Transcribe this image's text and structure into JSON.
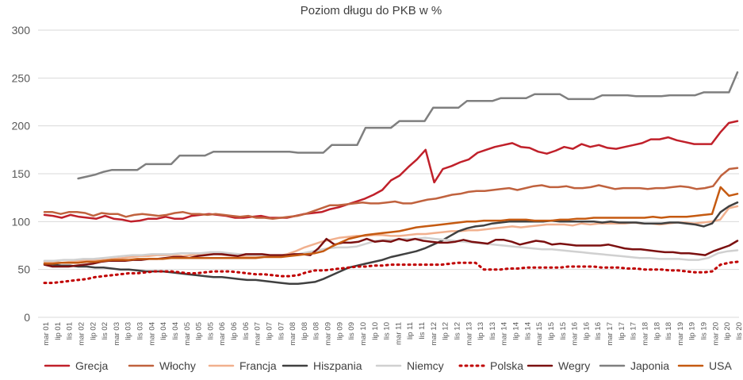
{
  "chart_data": {
    "type": "line",
    "title": "Poziom długu do PKB w %",
    "xlabel": "",
    "ylabel": "",
    "ylim": [
      0,
      300
    ],
    "yticks": [
      0,
      50,
      100,
      150,
      200,
      250,
      300
    ],
    "grid": true,
    "legend_position": "bottom",
    "x_tick_labels": [
      "mar 01",
      "lip 01",
      "lis 01",
      "mar 02",
      "lip 02",
      "lis 02",
      "mar 03",
      "lip 03",
      "lis 03",
      "mar 04",
      "lip 04",
      "lis 04",
      "mar 05",
      "lip 05",
      "lis 05",
      "mar 06",
      "lip 06",
      "lis 06",
      "mar 07",
      "lip 07",
      "lis 07",
      "mar 08",
      "lip 08",
      "lis 08",
      "mar 09",
      "lip 09",
      "lis 09",
      "mar 10",
      "lip 10",
      "lis 10",
      "mar 11",
      "lip 11",
      "lis 11",
      "mar 12",
      "lip 12",
      "lis 12",
      "mar 13",
      "lip 13",
      "lis 13",
      "mar 14",
      "lip 14",
      "lis 14",
      "mar 15",
      "lip 15",
      "lis 15",
      "mar 16",
      "lip 16",
      "lis 16",
      "mar 17",
      "lip 17",
      "lis 17",
      "mar 18",
      "lip 18",
      "lis 18",
      "mar 19",
      "lip 19",
      "lis 19",
      "mar 20",
      "lip 20",
      "lis 20"
    ],
    "series": [
      {
        "name": "Grecja",
        "color": "#c0202a",
        "width": 2.5,
        "dash": "",
        "start": 0,
        "values": [
          107,
          106,
          104,
          107,
          105,
          104,
          103,
          106,
          103,
          102,
          100,
          101,
          103,
          103,
          105,
          103,
          103,
          106,
          107,
          108,
          107,
          106,
          104,
          104,
          105,
          106,
          104,
          104,
          104,
          106,
          108,
          109,
          110,
          113,
          115,
          118,
          121,
          124,
          128,
          133,
          143,
          148,
          157,
          165,
          175,
          141,
          155,
          158,
          162,
          165,
          172,
          175,
          178,
          180,
          182,
          178,
          177,
          173,
          171,
          174,
          178,
          176,
          181,
          178,
          180,
          177,
          176,
          178,
          180,
          182,
          186,
          186,
          188,
          185,
          183,
          181,
          181,
          181,
          193,
          203,
          205
        ]
      },
      {
        "name": "Włochy",
        "color": "#c0623e",
        "width": 2.5,
        "dash": "",
        "start": 0,
        "values": [
          110,
          110,
          108,
          110,
          110,
          109,
          106,
          109,
          108,
          108,
          105,
          107,
          108,
          107,
          106,
          107,
          109,
          110,
          108,
          108,
          107,
          108,
          107,
          106,
          105,
          106,
          104,
          104,
          103,
          104,
          105,
          106,
          108,
          111,
          114,
          117,
          117,
          118,
          119,
          120,
          119,
          119,
          120,
          121,
          119,
          119,
          121,
          123,
          124,
          126,
          128,
          129,
          131,
          132,
          132,
          133,
          134,
          135,
          133,
          135,
          137,
          138,
          136,
          136,
          137,
          135,
          135,
          136,
          138,
          136,
          134,
          135,
          135,
          135,
          134,
          135,
          135,
          136,
          137,
          136,
          134,
          135,
          137,
          148,
          155,
          156
        ]
      },
      {
        "name": "Francja",
        "color": "#f1b08e",
        "width": 2.5,
        "dash": "",
        "start": 0,
        "values": [
          58,
          58,
          57,
          58,
          59,
          59,
          60,
          60,
          61,
          62,
          63,
          64,
          64,
          65,
          65,
          65,
          64,
          65,
          66,
          66,
          66,
          65,
          64,
          64,
          63,
          64,
          64,
          64,
          66,
          69,
          73,
          76,
          79,
          81,
          83,
          84,
          85,
          85,
          86,
          86,
          85,
          85,
          86,
          87,
          87,
          88,
          89,
          90,
          90,
          91,
          91,
          92,
          93,
          94,
          95,
          94,
          95,
          96,
          97,
          97,
          97,
          96,
          98,
          97,
          98,
          98,
          98,
          98,
          99,
          98,
          98,
          97,
          98,
          99,
          99,
          98,
          99,
          100,
          102,
          114,
          116
        ]
      },
      {
        "name": "Hiszpania",
        "color": "#404040",
        "width": 2.5,
        "dash": "",
        "start": 0,
        "values": [
          56,
          55,
          54,
          54,
          53,
          53,
          52,
          52,
          51,
          50,
          50,
          49,
          48,
          48,
          48,
          47,
          46,
          45,
          44,
          43,
          42,
          42,
          41,
          40,
          39,
          39,
          38,
          37,
          36,
          35,
          35,
          36,
          37,
          40,
          44,
          48,
          52,
          54,
          56,
          58,
          60,
          63,
          65,
          67,
          69,
          72,
          76,
          80,
          85,
          90,
          93,
          95,
          96,
          98,
          99,
          100,
          100,
          100,
          100,
          100,
          101,
          100,
          100,
          100,
          100,
          100,
          99,
          100,
          99,
          99,
          99,
          98,
          98,
          98,
          99,
          99,
          98,
          97,
          95,
          98,
          110,
          116,
          120
        ]
      },
      {
        "name": "Niemcy",
        "color": "#d0d0d0",
        "width": 2.5,
        "dash": "",
        "start": 0,
        "values": [
          59,
          59,
          60,
          60,
          61,
          61,
          62,
          63,
          64,
          65,
          65,
          66,
          66,
          66,
          67,
          67,
          67,
          68,
          68,
          67,
          66,
          65,
          65,
          65,
          64,
          65,
          66,
          68,
          70,
          72,
          73,
          73,
          74,
          77,
          80,
          81,
          81,
          82,
          82,
          83,
          82,
          81,
          80,
          79,
          78,
          77,
          76,
          75,
          74,
          73,
          72,
          71,
          71,
          70,
          69,
          68,
          67,
          66,
          65,
          64,
          63,
          62,
          62,
          61,
          61,
          61,
          60,
          60,
          62,
          67,
          69,
          70
        ]
      },
      {
        "name": "Polska",
        "color": "#c00000",
        "width": 3,
        "dash": "2 5",
        "start": 0,
        "values": [
          36,
          36,
          37,
          38,
          39,
          40,
          42,
          43,
          44,
          45,
          46,
          46,
          47,
          48,
          48,
          48,
          47,
          46,
          46,
          47,
          48,
          48,
          48,
          47,
          46,
          45,
          45,
          44,
          43,
          43,
          44,
          47,
          49,
          49,
          50,
          51,
          52,
          53,
          53,
          54,
          54,
          55,
          55,
          55,
          55,
          55,
          55,
          55,
          56,
          57,
          57,
          57,
          50,
          50,
          50,
          51,
          51,
          52,
          52,
          52,
          52,
          52,
          53,
          53,
          53,
          53,
          52,
          52,
          52,
          51,
          51,
          50,
          50,
          50,
          49,
          49,
          48,
          47,
          47,
          48,
          55,
          57,
          58
        ]
      },
      {
        "name": "Wegry",
        "color": "#7b1010",
        "width": 2.5,
        "dash": "",
        "start": 0,
        "values": [
          55,
          53,
          53,
          53,
          54,
          55,
          56,
          58,
          59,
          59,
          59,
          60,
          60,
          61,
          61,
          62,
          63,
          63,
          62,
          64,
          65,
          66,
          66,
          65,
          64,
          66,
          66,
          66,
          65,
          65,
          65,
          66,
          66,
          65,
          72,
          82,
          76,
          78,
          78,
          79,
          82,
          79,
          80,
          79,
          82,
          80,
          82,
          80,
          79,
          78,
          78,
          79,
          81,
          79,
          78,
          77,
          81,
          81,
          79,
          76,
          78,
          80,
          79,
          76,
          77,
          76,
          75,
          75,
          75,
          75,
          76,
          74,
          72,
          71,
          71,
          70,
          69,
          68,
          68,
          67,
          67,
          66,
          65,
          69,
          72,
          75,
          80
        ]
      },
      {
        "name": "Japonia",
        "color": "#7f7f7f",
        "width": 2.5,
        "dash": "",
        "start": 4,
        "values": [
          145,
          147,
          149,
          152,
          154,
          154,
          154,
          154,
          160,
          160,
          160,
          160,
          169,
          169,
          169,
          169,
          173,
          173,
          173,
          173,
          173,
          173,
          173,
          173,
          173,
          173,
          172,
          172,
          172,
          172,
          180,
          180,
          180,
          180,
          198,
          198,
          198,
          198,
          205,
          205,
          205,
          205,
          219,
          219,
          219,
          219,
          226,
          226,
          226,
          226,
          229,
          229,
          229,
          229,
          233,
          233,
          233,
          233,
          228,
          228,
          228,
          228,
          232,
          232,
          232,
          232,
          231,
          231,
          231,
          231,
          232,
          232,
          232,
          232,
          235,
          235,
          235,
          235,
          256
        ]
      },
      {
        "name": "USA",
        "color": "#c55a11",
        "width": 2.5,
        "dash": "",
        "start": 0,
        "values": [
          56,
          56,
          57,
          57,
          57,
          58,
          58,
          59,
          60,
          60,
          60,
          61,
          61,
          61,
          61,
          62,
          62,
          62,
          62,
          62,
          62,
          62,
          62,
          62,
          62,
          62,
          63,
          63,
          63,
          64,
          65,
          66,
          67,
          69,
          74,
          78,
          82,
          84,
          86,
          87,
          88,
          89,
          90,
          92,
          94,
          95,
          96,
          97,
          98,
          99,
          100,
          100,
          101,
          101,
          101,
          102,
          102,
          102,
          101,
          101,
          101,
          102,
          102,
          103,
          103,
          104,
          104,
          104,
          104,
          104,
          104,
          104,
          105,
          104,
          105,
          105,
          105,
          106,
          107,
          108,
          136,
          127,
          129
        ]
      }
    ]
  }
}
